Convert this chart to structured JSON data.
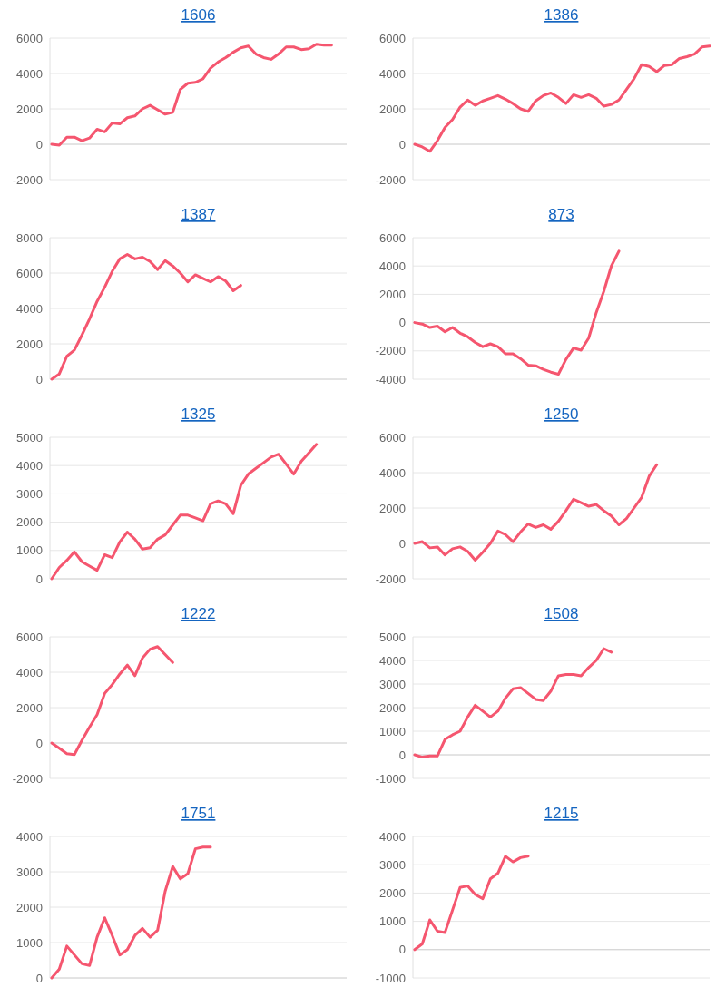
{
  "chart_data": [
    {
      "type": "line",
      "title": "1606",
      "color": "#f5566f",
      "grid": "y",
      "tick_labels": "y",
      "ylim": [
        -2000,
        6000
      ],
      "yticks": [
        -2000,
        0,
        2000,
        4000,
        6000
      ],
      "categories": [
        null,
        null,
        null,
        null,
        null,
        null,
        null,
        null,
        null,
        null,
        null,
        null,
        null,
        null,
        null,
        null,
        null,
        null,
        null,
        null,
        null,
        null,
        null,
        null,
        null,
        null,
        null,
        null,
        null,
        null,
        null,
        null,
        null,
        null,
        null,
        null,
        null,
        null,
        null,
        null
      ],
      "values": [
        0,
        -50,
        400,
        400,
        200,
        350,
        850,
        700,
        1200,
        1150,
        1500,
        1600,
        2000,
        2200,
        1950,
        1700,
        1800,
        3100,
        3450,
        3500,
        3700,
        4300,
        4650,
        4900,
        5200,
        5450,
        5550,
        5100,
        4900,
        4800,
        5100,
        5500,
        5500,
        5350,
        5400,
        5650,
        5600,
        5600,
        null,
        null
      ]
    },
    {
      "type": "line",
      "title": "1386",
      "color": "#f5566f",
      "grid": "y",
      "tick_labels": "y",
      "ylim": [
        -2000,
        6000
      ],
      "yticks": [
        -2000,
        0,
        2000,
        4000,
        6000
      ],
      "categories": [
        null,
        null,
        null,
        null,
        null,
        null,
        null,
        null,
        null,
        null,
        null,
        null,
        null,
        null,
        null,
        null,
        null,
        null,
        null,
        null,
        null,
        null,
        null,
        null,
        null,
        null,
        null,
        null,
        null,
        null,
        null,
        null,
        null,
        null,
        null,
        null,
        null,
        null,
        null,
        null
      ],
      "values": [
        0,
        -150,
        -400,
        200,
        950,
        1400,
        2100,
        2500,
        2200,
        2450,
        2600,
        2750,
        2550,
        2300,
        2000,
        1850,
        2450,
        2750,
        2900,
        2650,
        2300,
        2800,
        2650,
        2800,
        2600,
        2150,
        2250,
        2500,
        3100,
        3700,
        4500,
        4400,
        4100,
        4450,
        4500,
        4850,
        4950,
        5100,
        5500,
        5550
      ]
    },
    {
      "type": "line",
      "title": "1387",
      "color": "#f5566f",
      "grid": "y",
      "tick_labels": "y",
      "ylim": [
        0,
        8000
      ],
      "yticks": [
        0,
        2000,
        4000,
        6000,
        8000
      ],
      "categories": [
        null,
        null,
        null,
        null,
        null,
        null,
        null,
        null,
        null,
        null,
        null,
        null,
        null,
        null,
        null,
        null,
        null,
        null,
        null,
        null,
        null,
        null,
        null,
        null,
        null,
        null,
        null,
        null,
        null,
        null,
        null,
        null,
        null,
        null,
        null,
        null,
        null,
        null,
        null,
        null
      ],
      "values": [
        0,
        300,
        1300,
        1650,
        2500,
        3400,
        4400,
        5200,
        6100,
        6800,
        7050,
        6800,
        6900,
        6650,
        6200,
        6700,
        6400,
        6000,
        5500,
        5900,
        5700,
        5500,
        5800,
        5550,
        5000,
        5300,
        null,
        null,
        null,
        null,
        null,
        null,
        null,
        null,
        null,
        null,
        null,
        null,
        null,
        null
      ]
    },
    {
      "type": "line",
      "title": "873",
      "color": "#f5566f",
      "grid": "y",
      "tick_labels": "y",
      "ylim": [
        -4000,
        6000
      ],
      "yticks": [
        -4000,
        -2000,
        0,
        2000,
        4000,
        6000
      ],
      "categories": [
        null,
        null,
        null,
        null,
        null,
        null,
        null,
        null,
        null,
        null,
        null,
        null,
        null,
        null,
        null,
        null,
        null,
        null,
        null,
        null,
        null,
        null,
        null,
        null,
        null,
        null,
        null,
        null,
        null,
        null,
        null,
        null,
        null,
        null,
        null,
        null,
        null,
        null,
        null,
        null
      ],
      "values": [
        0,
        -100,
        -350,
        -250,
        -650,
        -350,
        -750,
        -1000,
        -1400,
        -1700,
        -1500,
        -1700,
        -2200,
        -2200,
        -2550,
        -3000,
        -3050,
        -3300,
        -3500,
        -3650,
        -2600,
        -1800,
        -1950,
        -1100,
        700,
        2200,
        4000,
        5050,
        null,
        null,
        null,
        null,
        null,
        null,
        null,
        null,
        null,
        null,
        null,
        null
      ]
    },
    {
      "type": "line",
      "title": "1325",
      "color": "#f5566f",
      "grid": "y",
      "tick_labels": "y",
      "ylim": [
        0,
        5000
      ],
      "yticks": [
        0,
        1000,
        2000,
        3000,
        4000,
        5000
      ],
      "categories": [
        null,
        null,
        null,
        null,
        null,
        null,
        null,
        null,
        null,
        null,
        null,
        null,
        null,
        null,
        null,
        null,
        null,
        null,
        null,
        null,
        null,
        null,
        null,
        null,
        null,
        null,
        null,
        null,
        null,
        null,
        null,
        null,
        null,
        null,
        null,
        null,
        null,
        null,
        null,
        null
      ],
      "values": [
        0,
        400,
        650,
        950,
        600,
        450,
        300,
        850,
        750,
        1300,
        1650,
        1400,
        1050,
        1100,
        1400,
        1550,
        1900,
        2250,
        2250,
        2150,
        2050,
        2650,
        2750,
        2650,
        2300,
        3300,
        3700,
        3900,
        4100,
        4300,
        4400,
        4050,
        3700,
        4150,
        4450,
        4750,
        null,
        null,
        null,
        null
      ]
    },
    {
      "type": "line",
      "title": "1250",
      "color": "#f5566f",
      "grid": "y",
      "tick_labels": "y",
      "ylim": [
        -2000,
        6000
      ],
      "yticks": [
        -2000,
        0,
        2000,
        4000,
        6000
      ],
      "categories": [
        null,
        null,
        null,
        null,
        null,
        null,
        null,
        null,
        null,
        null,
        null,
        null,
        null,
        null,
        null,
        null,
        null,
        null,
        null,
        null,
        null,
        null,
        null,
        null,
        null,
        null,
        null,
        null,
        null,
        null,
        null,
        null,
        null,
        null,
        null,
        null,
        null,
        null,
        null,
        null
      ],
      "values": [
        0,
        100,
        -250,
        -200,
        -650,
        -300,
        -200,
        -450,
        -950,
        -500,
        0,
        700,
        500,
        100,
        650,
        1100,
        900,
        1050,
        800,
        1250,
        1850,
        2500,
        2300,
        2100,
        2200,
        1850,
        1550,
        1050,
        1400,
        2000,
        2600,
        3800,
        4450,
        null,
        null,
        null,
        null,
        null,
        null,
        null
      ]
    },
    {
      "type": "line",
      "title": "1222",
      "color": "#f5566f",
      "grid": "y",
      "tick_labels": "y",
      "ylim": [
        -2000,
        6000
      ],
      "yticks": [
        -2000,
        0,
        2000,
        4000,
        6000
      ],
      "categories": [
        null,
        null,
        null,
        null,
        null,
        null,
        null,
        null,
        null,
        null,
        null,
        null,
        null,
        null,
        null,
        null,
        null,
        null,
        null,
        null,
        null,
        null,
        null,
        null,
        null,
        null,
        null,
        null,
        null,
        null,
        null,
        null,
        null,
        null,
        null,
        null,
        null,
        null,
        null,
        null
      ],
      "values": [
        0,
        -300,
        -600,
        -650,
        150,
        900,
        1600,
        2800,
        3300,
        3900,
        4400,
        3800,
        4800,
        5300,
        5450,
        5000,
        4550,
        null,
        null,
        null,
        null,
        null,
        null,
        null,
        null,
        null,
        null,
        null,
        null,
        null,
        null,
        null,
        null,
        null,
        null,
        null,
        null,
        null,
        null,
        null
      ]
    },
    {
      "type": "line",
      "title": "1508",
      "color": "#f5566f",
      "grid": "y",
      "tick_labels": "y",
      "ylim": [
        -1000,
        5000
      ],
      "yticks": [
        -1000,
        0,
        1000,
        2000,
        3000,
        4000,
        5000
      ],
      "categories": [
        null,
        null,
        null,
        null,
        null,
        null,
        null,
        null,
        null,
        null,
        null,
        null,
        null,
        null,
        null,
        null,
        null,
        null,
        null,
        null,
        null,
        null,
        null,
        null,
        null,
        null,
        null,
        null,
        null,
        null,
        null,
        null,
        null,
        null,
        null,
        null,
        null,
        null,
        null,
        null
      ],
      "values": [
        0,
        -100,
        -50,
        -50,
        650,
        850,
        1000,
        1600,
        2100,
        1850,
        1600,
        1850,
        2400,
        2800,
        2850,
        2600,
        2350,
        2300,
        2700,
        3350,
        3400,
        3400,
        3350,
        3700,
        4000,
        4500,
        4350,
        null,
        null,
        null,
        null,
        null,
        null,
        null,
        null,
        null,
        null,
        null,
        null,
        null
      ]
    },
    {
      "type": "line",
      "title": "1751",
      "color": "#f5566f",
      "grid": "y",
      "tick_labels": "y",
      "ylim": [
        0,
        4000
      ],
      "yticks": [
        0,
        1000,
        2000,
        3000,
        4000
      ],
      "categories": [
        null,
        null,
        null,
        null,
        null,
        null,
        null,
        null,
        null,
        null,
        null,
        null,
        null,
        null,
        null,
        null,
        null,
        null,
        null,
        null,
        null,
        null,
        null,
        null,
        null,
        null,
        null,
        null,
        null,
        null,
        null,
        null,
        null,
        null,
        null,
        null,
        null,
        null,
        null,
        null
      ],
      "values": [
        0,
        250,
        900,
        650,
        400,
        350,
        1150,
        1700,
        1200,
        650,
        800,
        1200,
        1400,
        1150,
        1350,
        2450,
        3150,
        2800,
        2950,
        3650,
        3700,
        3700,
        null,
        null,
        null,
        null,
        null,
        null,
        null,
        null,
        null,
        null,
        null,
        null,
        null,
        null,
        null,
        null,
        null,
        null
      ]
    },
    {
      "type": "line",
      "title": "1215",
      "color": "#f5566f",
      "grid": "y",
      "tick_labels": "y",
      "ylim": [
        -1000,
        4000
      ],
      "yticks": [
        -1000,
        0,
        1000,
        2000,
        3000,
        4000
      ],
      "categories": [
        null,
        null,
        null,
        null,
        null,
        null,
        null,
        null,
        null,
        null,
        null,
        null,
        null,
        null,
        null,
        null,
        null,
        null,
        null,
        null,
        null,
        null,
        null,
        null,
        null,
        null,
        null,
        null,
        null,
        null,
        null,
        null,
        null,
        null,
        null,
        null,
        null,
        null,
        null,
        null
      ],
      "values": [
        0,
        200,
        1050,
        650,
        600,
        1400,
        2200,
        2250,
        1950,
        1800,
        2500,
        2700,
        3300,
        3100,
        3250,
        3300,
        null,
        null,
        null,
        null,
        null,
        null,
        null,
        null,
        null,
        null,
        null,
        null,
        null,
        null,
        null,
        null,
        null,
        null,
        null,
        null,
        null,
        null,
        null,
        null
      ]
    }
  ]
}
